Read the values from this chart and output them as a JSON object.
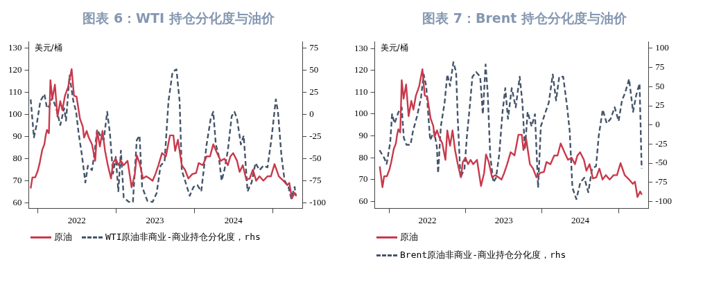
{
  "chart_data": [
    {
      "type": "line",
      "title": "图表 6：WTI 持仓分化度与油价",
      "ylabel": "美元/桶",
      "legend": "bottom",
      "grid": false,
      "xlim": [
        "2021-11-20",
        "2025-05-20"
      ],
      "xticks": [
        {
          "value": "2022-01-01",
          "label": null
        },
        {
          "value": "2022-07-02",
          "label": "2022"
        },
        {
          "value": "2023-01-01",
          "label": null
        },
        {
          "value": "2023-07-02",
          "label": "2023"
        },
        {
          "value": "2024-01-01",
          "label": null
        },
        {
          "value": "2024-07-02",
          "label": "2024"
        },
        {
          "value": "2025-01-01",
          "label": null
        }
      ],
      "ylim": [
        57.5,
        133
      ],
      "yticks": [
        60,
        70,
        80,
        90,
        100,
        110,
        120,
        130
      ],
      "y2lim": [
        -106.25,
        82.5
      ],
      "y2ticks": [
        -100,
        -75,
        -50,
        -25,
        0,
        25,
        50,
        75
      ],
      "series": [
        {
          "name": "原油",
          "color": "#c8394b",
          "line_style": "solid",
          "x": [
            "2021-11-29",
            "2021-12-07",
            "2021-12-20",
            "2022-01-01",
            "2022-01-10",
            "2022-01-22",
            "2022-02-01",
            "2022-02-07",
            "2022-02-13",
            "2022-02-22",
            "2022-03-01",
            "2022-03-10",
            "2022-03-22",
            "2022-04-03",
            "2022-04-16",
            "2022-04-26",
            "2022-05-08",
            "2022-05-23",
            "2022-06-08",
            "2022-06-19",
            "2022-07-01",
            "2022-07-17",
            "2022-07-30",
            "2022-08-05",
            "2022-08-17",
            "2022-08-27",
            "2022-09-11",
            "2022-09-26",
            "2022-10-05",
            "2022-10-18",
            "2022-10-30",
            "2022-11-11",
            "2022-11-24",
            "2022-12-09",
            "2022-12-18",
            "2022-12-31",
            "2023-01-12",
            "2023-01-24",
            "2023-02-06",
            "2023-02-24",
            "2023-03-15",
            "2023-03-30",
            "2023-04-08",
            "2023-04-21",
            "2023-05-07",
            "2023-05-22",
            "2023-06-07",
            "2023-06-21",
            "2023-07-04",
            "2023-07-18",
            "2023-08-04",
            "2023-08-22",
            "2023-09-10",
            "2023-09-26",
            "2023-10-04",
            "2023-10-17",
            "2023-11-04",
            "2023-11-19",
            "2023-12-05",
            "2023-12-23",
            "2024-01-10",
            "2024-01-22",
            "2024-02-10",
            "2024-02-28",
            "2024-03-15",
            "2024-03-30",
            "2024-04-17",
            "2024-05-04",
            "2024-05-21",
            "2024-06-06",
            "2024-06-18",
            "2024-07-01",
            "2024-07-19",
            "2024-07-31",
            "2024-08-15",
            "2024-08-31",
            "2024-09-16",
            "2024-10-01",
            "2024-10-16",
            "2024-11-01",
            "2024-11-19",
            "2024-12-08",
            "2024-12-24",
            "2025-01-10",
            "2025-01-30",
            "2025-02-20",
            "2025-03-10",
            "2025-03-20",
            "2025-04-01",
            "2025-04-14",
            "2025-04-22"
          ],
          "values": [
            66.5,
            71.5,
            71.5,
            74.5,
            78,
            84,
            86.5,
            90.5,
            93,
            91.5,
            115.5,
            107,
            113.5,
            99,
            106,
            102,
            108.5,
            112.5,
            120.5,
            108.5,
            108,
            98,
            94.5,
            89.5,
            92.5,
            89.5,
            86.5,
            79,
            92.5,
            85.5,
            92.5,
            83.5,
            77,
            71,
            78,
            80,
            77,
            79,
            77,
            79,
            67,
            73,
            81.5,
            78,
            71,
            72,
            71,
            70,
            73,
            77,
            82.5,
            81,
            90.5,
            90.5,
            83.5,
            88.5,
            77,
            75,
            71,
            73,
            73.5,
            78,
            77,
            81,
            81,
            86.5,
            82.5,
            79,
            80,
            77,
            81,
            82.5,
            79,
            74,
            77,
            70.5,
            71,
            75,
            70,
            72,
            70,
            72,
            72,
            77.5,
            72,
            70,
            68,
            69,
            62,
            64.5,
            63
          ]
        },
        {
          "name": "WTI原油非商业-商业持仓分化度，rhs",
          "color": "#44546a",
          "line_style": "dashed",
          "axis": "y2",
          "x": [
            "2021-11-29",
            "2021-12-14",
            "2021-12-28",
            "2022-01-13",
            "2022-02-01",
            "2022-02-13",
            "2022-02-25",
            "2022-03-10",
            "2022-03-28",
            "2022-04-16",
            "2022-05-04",
            "2022-05-13",
            "2022-05-29",
            "2022-06-16",
            "2022-06-29",
            "2022-07-11",
            "2022-07-26",
            "2022-08-11",
            "2022-08-23",
            "2022-09-11",
            "2022-09-23",
            "2022-10-05",
            "2022-10-24",
            "2022-11-05",
            "2022-11-21",
            "2022-12-04",
            "2022-12-18",
            "2022-12-31",
            "2023-01-12",
            "2023-01-24",
            "2023-02-06",
            "2023-03-02",
            "2023-03-21",
            "2023-04-08",
            "2023-04-21",
            "2023-05-03",
            "2023-05-28",
            "2023-06-21",
            "2023-07-10",
            "2023-07-28",
            "2023-08-16",
            "2023-09-03",
            "2023-09-22",
            "2023-10-10",
            "2023-10-25",
            "2023-11-04",
            "2023-11-22",
            "2023-12-11",
            "2023-12-29",
            "2024-01-16",
            "2024-02-03",
            "2024-02-28",
            "2024-03-18",
            "2024-03-30",
            "2024-04-11",
            "2024-04-24",
            "2024-05-08",
            "2024-05-21",
            "2024-06-06",
            "2024-06-24",
            "2024-07-07",
            "2024-07-19",
            "2024-08-06",
            "2024-08-19",
            "2024-09-06",
            "2024-09-25",
            "2024-10-13",
            "2024-11-01",
            "2024-11-19",
            "2024-12-08",
            "2024-12-26",
            "2025-01-16",
            "2025-01-26",
            "2025-02-11",
            "2025-02-26",
            "2025-03-16",
            "2025-03-29",
            "2025-04-14",
            "2025-04-19"
          ],
          "values": [
            17,
            -26,
            -10,
            15,
            23,
            7,
            10,
            19,
            7,
            -12,
            7,
            -7,
            44,
            15,
            3,
            -22,
            -46,
            -77,
            -58,
            -63,
            -43,
            -17,
            -26,
            -29,
            3,
            -22,
            -67,
            -48,
            -87,
            -41,
            -94,
            -99,
            -99,
            -29,
            -24,
            -82,
            -98,
            -99,
            -89,
            -58,
            -53,
            15,
            48,
            51,
            15,
            -63,
            -77,
            -92,
            -82,
            -80,
            -87,
            -34,
            -5,
            3,
            -34,
            -46,
            -75,
            -63,
            -41,
            -2,
            3,
            -5,
            -34,
            -24,
            -87,
            -77,
            -55,
            -63,
            -58,
            -60,
            -29,
            17,
            3,
            -46,
            -75,
            -82,
            -95,
            -82,
            -92
          ]
        }
      ]
    },
    {
      "type": "line",
      "title": "图表 7：Brent 持仓分化度与油价",
      "ylabel": "美元/桶",
      "legend": "bottom",
      "grid": false,
      "xlim": [
        "2021-10-23",
        "2025-05-23"
      ],
      "xticks": [
        {
          "value": "2022-01-01",
          "label": null
        },
        {
          "value": "2022-07-02",
          "label": "2022"
        },
        {
          "value": "2023-01-01",
          "label": null
        },
        {
          "value": "2023-07-02",
          "label": "2023"
        },
        {
          "value": "2024-01-01",
          "label": null
        },
        {
          "value": "2024-07-02",
          "label": "2024"
        },
        {
          "value": "2025-01-01",
          "label": null
        }
      ],
      "ylim": [
        56.8,
        133.2
      ],
      "yticks": [
        60,
        70,
        80,
        90,
        100,
        110,
        120,
        130
      ],
      "y2lim": [
        -109,
        109
      ],
      "y2ticks": [
        -100,
        -75,
        -50,
        -25,
        0,
        25,
        50,
        75,
        100
      ],
      "series": [
        {
          "name": "原油",
          "color": "#c8394b",
          "line_style": "solid",
          "x": [
            "2021-11-16",
            "2021-11-29",
            "2021-12-07",
            "2021-12-20",
            "2022-01-01",
            "2022-01-10",
            "2022-01-22",
            "2022-02-01",
            "2022-02-07",
            "2022-02-13",
            "2022-02-22",
            "2022-03-01",
            "2022-03-10",
            "2022-03-22",
            "2022-04-03",
            "2022-04-16",
            "2022-04-26",
            "2022-05-08",
            "2022-05-23",
            "2022-06-08",
            "2022-06-19",
            "2022-07-01",
            "2022-07-17",
            "2022-07-30",
            "2022-08-05",
            "2022-08-17",
            "2022-08-27",
            "2022-09-11",
            "2022-09-26",
            "2022-10-05",
            "2022-10-18",
            "2022-10-30",
            "2022-11-11",
            "2022-11-24",
            "2022-12-09",
            "2022-12-18",
            "2022-12-31",
            "2023-01-12",
            "2023-01-24",
            "2023-02-06",
            "2023-02-24",
            "2023-03-15",
            "2023-03-30",
            "2023-04-08",
            "2023-04-21",
            "2023-05-07",
            "2023-05-22",
            "2023-06-07",
            "2023-06-21",
            "2023-07-04",
            "2023-07-18",
            "2023-08-04",
            "2023-08-22",
            "2023-09-10",
            "2023-09-26",
            "2023-10-04",
            "2023-10-17",
            "2023-11-04",
            "2023-11-19",
            "2023-12-05",
            "2023-12-23",
            "2024-01-10",
            "2024-01-22",
            "2024-02-10",
            "2024-02-28",
            "2024-03-15",
            "2024-03-30",
            "2024-04-17",
            "2024-05-04",
            "2024-05-21",
            "2024-06-06",
            "2024-06-18",
            "2024-07-01",
            "2024-07-19",
            "2024-07-31",
            "2024-08-15",
            "2024-08-31",
            "2024-09-16",
            "2024-10-01",
            "2024-10-16",
            "2024-11-01",
            "2024-11-19",
            "2024-12-08",
            "2024-12-24",
            "2025-01-10",
            "2025-01-30",
            "2025-02-20",
            "2025-03-10",
            "2025-03-20",
            "2025-04-01",
            "2025-04-14",
            "2025-04-22"
          ],
          "values": [
            76,
            66.5,
            71.5,
            71.5,
            74.5,
            78,
            84,
            86.5,
            90.5,
            93,
            91.5,
            115.5,
            107,
            113.5,
            99,
            106,
            102,
            108.5,
            112.5,
            120.5,
            108.5,
            108,
            98,
            94.5,
            89.5,
            92.5,
            89.5,
            86.5,
            79,
            92.5,
            85.5,
            92.5,
            83.5,
            77,
            71,
            78,
            80,
            77,
            79,
            77,
            79,
            67,
            73,
            81.5,
            78,
            71,
            72,
            71,
            70,
            73,
            77,
            82.5,
            81,
            90.5,
            90.5,
            83.5,
            88.5,
            77,
            75,
            71,
            73,
            73.5,
            78,
            77,
            81,
            81,
            86.5,
            82.5,
            79,
            80,
            77,
            81,
            82.5,
            79,
            74,
            77,
            70.5,
            71,
            75,
            70,
            72,
            70,
            72,
            72,
            77.5,
            72,
            70,
            68,
            69,
            62,
            64.5,
            63
          ]
        },
        {
          "name": "Brent原油非商业-商业持仓分化度，rhs",
          "color": "#44546a",
          "line_style": "dashed",
          "axis": "y2",
          "x": [
            "2021-11-15",
            "2021-12-07",
            "2021-12-19",
            "2022-01-05",
            "2022-01-14",
            "2022-01-26",
            "2022-02-14",
            "2022-03-01",
            "2022-03-11",
            "2022-03-24",
            "2022-04-12",
            "2022-04-24",
            "2022-05-13",
            "2022-06-01",
            "2022-06-14",
            "2022-06-26",
            "2022-07-05",
            "2022-07-15",
            "2022-08-03",
            "2022-08-16",
            "2022-08-22",
            "2022-09-04",
            "2022-09-22",
            "2022-10-05",
            "2022-10-18",
            "2022-11-03",
            "2022-11-16",
            "2022-11-24",
            "2022-12-07",
            "2022-12-26",
            "2023-01-07",
            "2023-01-20",
            "2023-02-02",
            "2023-02-20",
            "2023-03-11",
            "2023-03-24",
            "2023-04-06",
            "2023-04-16",
            "2023-04-28",
            "2023-05-13",
            "2023-05-26",
            "2023-06-10",
            "2023-06-26",
            "2023-07-09",
            "2023-07-22",
            "2023-08-09",
            "2023-08-28",
            "2023-09-16",
            "2023-09-29",
            "2023-10-11",
            "2023-10-24",
            "2023-11-12",
            "2023-11-28",
            "2023-12-13",
            "2023-12-26",
            "2024-01-14",
            "2024-02-02",
            "2024-02-21",
            "2024-03-08",
            "2024-03-23",
            "2024-04-11",
            "2024-04-30",
            "2024-05-12",
            "2024-05-25",
            "2024-06-13",
            "2024-07-02",
            "2024-07-21",
            "2024-08-09",
            "2024-08-27",
            "2024-09-15",
            "2024-09-28",
            "2024-10-17",
            "2024-11-05",
            "2024-11-24",
            "2024-12-13",
            "2025-01-01",
            "2025-01-17",
            "2025-02-01",
            "2025-02-20",
            "2025-03-11",
            "2025-03-26",
            "2025-04-11",
            "2025-04-21"
          ],
          "values": [
            -33,
            -43,
            -51,
            -23,
            14,
            2,
            17,
            23,
            -17,
            -26,
            -26,
            -8,
            11,
            35,
            66,
            51,
            17,
            -20,
            -8,
            -29,
            -63,
            -2,
            29,
            66,
            51,
            82,
            69,
            8,
            -69,
            -57,
            -14,
            23,
            63,
            69,
            63,
            14,
            79,
            42,
            -39,
            -75,
            -69,
            -39,
            17,
            48,
            8,
            48,
            23,
            63,
            29,
            -32,
            17,
            -2,
            14,
            -82,
            -2,
            14,
            29,
            66,
            32,
            63,
            63,
            23,
            -8,
            -82,
            -97,
            -75,
            -69,
            -88,
            -57,
            -54,
            -14,
            20,
            2,
            8,
            23,
            5,
            32,
            42,
            60,
            17,
            39,
            54,
            -57
          ]
        }
      ]
    }
  ]
}
